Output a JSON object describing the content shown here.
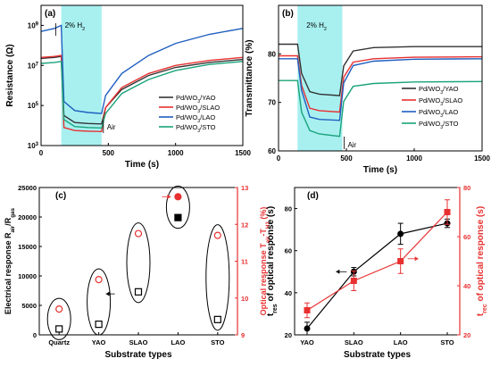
{
  "figure": {
    "colors": {
      "YAO": "#333333",
      "SLAO": "#e83030",
      "LAO": "#1f5fc0",
      "STO": "#1aa37a",
      "h2_band": "#a8f0f0",
      "red_axis": "#e83030"
    }
  },
  "chart_data": [
    {
      "panel": "(a)",
      "type": "line",
      "xlabel": "Time (s)",
      "ylabel": "Resistance (Ω)",
      "yscale": "log",
      "xlim": [
        0,
        1500
      ],
      "ylim_exponent": [
        3,
        10
      ],
      "xticks": [
        0,
        500,
        1000,
        1500
      ],
      "yticks_exponent": [
        3,
        5,
        7,
        9
      ],
      "band": {
        "x": [
          150,
          450
        ],
        "label": "2% H2"
      },
      "annotations": [
        "Air"
      ],
      "legend": "bottom-right",
      "series": [
        {
          "name": "Pd/WO3/YAO",
          "color_key": "YAO",
          "x": [
            0,
            100,
            150,
            170,
            250,
            350,
            450,
            480,
            600,
            800,
            1000,
            1250,
            1500
          ],
          "y_exp": [
            7.35,
            7.4,
            7.45,
            4.5,
            4.15,
            4.1,
            4.08,
            4.9,
            5.8,
            6.5,
            6.9,
            7.15,
            7.3
          ]
        },
        {
          "name": "Pd/WO3/SLAO",
          "color_key": "SLAO",
          "x": [
            0,
            100,
            150,
            170,
            250,
            350,
            450,
            480,
            600,
            800,
            1000,
            1250,
            1500
          ],
          "y_exp": [
            7.4,
            7.45,
            7.5,
            3.9,
            3.75,
            3.72,
            3.7,
            4.9,
            5.9,
            6.6,
            7.0,
            7.25,
            7.4
          ]
        },
        {
          "name": "Pd/WO3/LAO",
          "color_key": "LAO",
          "x": [
            0,
            100,
            150,
            170,
            250,
            350,
            450,
            480,
            600,
            800,
            1000,
            1250,
            1500
          ],
          "y_exp": [
            8.7,
            8.85,
            9.0,
            5.2,
            4.75,
            4.65,
            4.6,
            5.5,
            6.6,
            7.5,
            8.1,
            8.55,
            8.85
          ]
        },
        {
          "name": "Pd/WO3/STO",
          "color_key": "STO",
          "x": [
            0,
            100,
            150,
            170,
            250,
            350,
            450,
            480,
            600,
            800,
            1000,
            1250,
            1500
          ],
          "y_exp": [
            7.1,
            7.15,
            7.2,
            4.3,
            3.95,
            3.9,
            3.88,
            4.6,
            5.6,
            6.3,
            6.75,
            7.05,
            7.2
          ]
        }
      ]
    },
    {
      "panel": "(b)",
      "type": "line",
      "xlabel": "Time (s)",
      "ylabel": "Transmittance (%)",
      "xlim": [
        0,
        1500
      ],
      "ylim": [
        60,
        90
      ],
      "xticks": [
        0,
        500,
        1000,
        1500
      ],
      "yticks": [
        60,
        70,
        80
      ],
      "band": {
        "x": [
          140,
          470
        ],
        "label": "2% H2"
      },
      "annotations": [
        "Air"
      ],
      "legend": "bottom-right",
      "series": [
        {
          "name": "Pd/WO3/YAO",
          "color_key": "YAO",
          "x": [
            0,
            140,
            170,
            230,
            300,
            450,
            480,
            550,
            700,
            1000,
            1500
          ],
          "y": [
            82,
            82,
            76,
            72.2,
            71.7,
            71.4,
            77.5,
            80.6,
            81.3,
            81.5,
            81.5
          ]
        },
        {
          "name": "Pd/WO3/SLAO",
          "color_key": "SLAO",
          "x": [
            0,
            140,
            170,
            230,
            300,
            450,
            480,
            550,
            700,
            1000,
            1500
          ],
          "y": [
            79.6,
            79.6,
            73.5,
            68.8,
            68.3,
            68.0,
            75.2,
            78.3,
            79.0,
            79.3,
            79.4
          ]
        },
        {
          "name": "Pd/WO3/LAO",
          "color_key": "LAO",
          "x": [
            0,
            140,
            170,
            230,
            300,
            450,
            480,
            550,
            700,
            1000,
            1500
          ],
          "y": [
            79.0,
            79.0,
            72.5,
            67.0,
            66.5,
            66.3,
            74.0,
            77.6,
            78.5,
            78.9,
            79.0
          ]
        },
        {
          "name": "Pd/WO3/STO",
          "color_key": "STO",
          "x": [
            0,
            140,
            170,
            230,
            300,
            450,
            480,
            550,
            700,
            1000,
            1500
          ],
          "y": [
            74.5,
            74.5,
            68.0,
            64.2,
            63.5,
            63.0,
            70.2,
            73.3,
            73.9,
            74.2,
            74.3
          ]
        }
      ]
    },
    {
      "panel": "(c)",
      "type": "scatter",
      "xlabel": "Substrate types",
      "ylabel": "Electrical response Rair/Rgas",
      "ylabel_right": "Optical response Tair-TH2 (%)",
      "categories": [
        "Quartz",
        "YAO",
        "SLAO",
        "LAO",
        "STO"
      ],
      "ylim": [
        0,
        25000
      ],
      "yticks": [
        0,
        5000,
        10000,
        15000,
        20000,
        25000
      ],
      "ylim_right": [
        9,
        13
      ],
      "yticks_right": [
        9,
        10,
        11,
        12,
        13
      ],
      "series": [
        {
          "name": "Electrical response",
          "marker": "square",
          "axis": "left",
          "values": [
            1000,
            1800,
            7300,
            19900,
            2600
          ]
        },
        {
          "name": "Optical response",
          "marker": "circle",
          "axis": "right",
          "values": [
            9.7,
            10.5,
            11.75,
            12.75,
            11.7
          ]
        }
      ]
    },
    {
      "panel": "(d)",
      "type": "line",
      "xlabel": "Substrate types",
      "ylabel": "tres of optical response (s)",
      "ylabel_right": "trec of optical response (s)",
      "categories": [
        "YAO",
        "SLAO",
        "LAO",
        "STO"
      ],
      "ylim": [
        20,
        90
      ],
      "yticks": [
        20,
        40,
        60,
        80
      ],
      "ylim_right": [
        20,
        80
      ],
      "yticks_right": [
        20,
        40,
        60,
        80
      ],
      "series": [
        {
          "name": "tres",
          "marker": "circle",
          "axis": "left",
          "values": [
            23,
            50,
            68,
            73
          ],
          "errors": [
            3,
            2,
            5,
            2
          ]
        },
        {
          "name": "trec",
          "marker": "square",
          "axis": "right",
          "values": [
            30,
            42,
            50,
            70
          ],
          "errors": [
            3,
            4,
            5,
            5
          ]
        }
      ]
    }
  ]
}
